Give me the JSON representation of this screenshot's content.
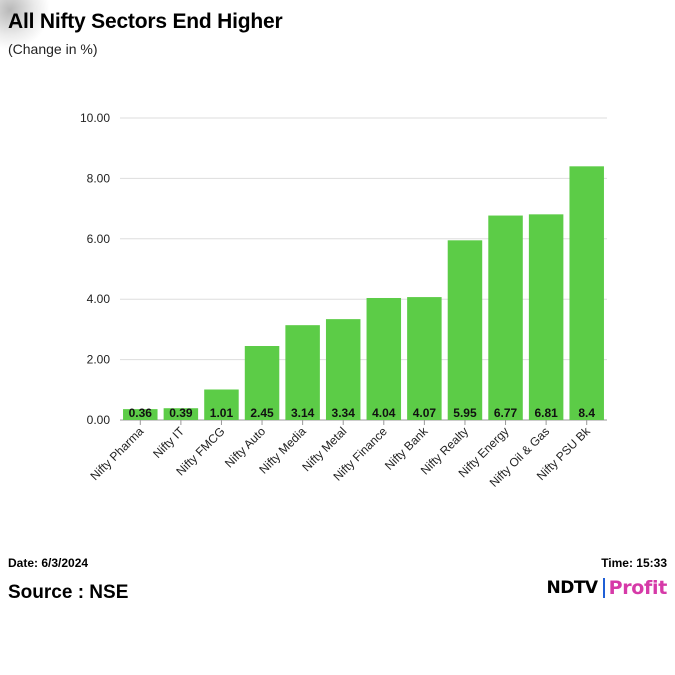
{
  "header": {
    "title": "All Nifty Sectors End Higher",
    "subtitle": "(Change in %)"
  },
  "footer": {
    "date": "Date: 6/3/2024",
    "time": "Time: 15:33",
    "source": "Source : NSE",
    "logo_left": "NDTV",
    "logo_right": "Profit"
  },
  "colors": {
    "bar": "#5ccc47",
    "grid": "#dddddd",
    "axis": "#999999",
    "text": "#222222"
  },
  "chart_data": {
    "type": "bar",
    "title": "All Nifty Sectors End Higher",
    "subtitle": "(Change in %)",
    "xlabel": "",
    "ylabel": "",
    "ylim": [
      0,
      10
    ],
    "yticks": [
      "0.00",
      "2.00",
      "4.00",
      "6.00",
      "8.00",
      "10.00"
    ],
    "grid": true,
    "legend": "none",
    "categories": [
      "Nifty Pharma",
      "Nifty IT",
      "Nifty FMCG",
      "Nifty Auto",
      "Nifty Media",
      "Nifty Metal",
      "Nifty Finance",
      "Nifty Bank",
      "Nifty Realty",
      "Nifty Energy",
      "Nifty Oil & Gas",
      "Nifty PSU Bk"
    ],
    "values": [
      0.36,
      0.39,
      1.01,
      2.45,
      3.14,
      3.34,
      4.04,
      4.07,
      5.95,
      6.77,
      6.81,
      8.4
    ],
    "data_labels": [
      "0.36",
      "0.39",
      "1.01",
      "2.45",
      "3.14",
      "3.34",
      "4.04",
      "4.07",
      "5.95",
      "6.77",
      "6.81",
      "8.4"
    ]
  }
}
